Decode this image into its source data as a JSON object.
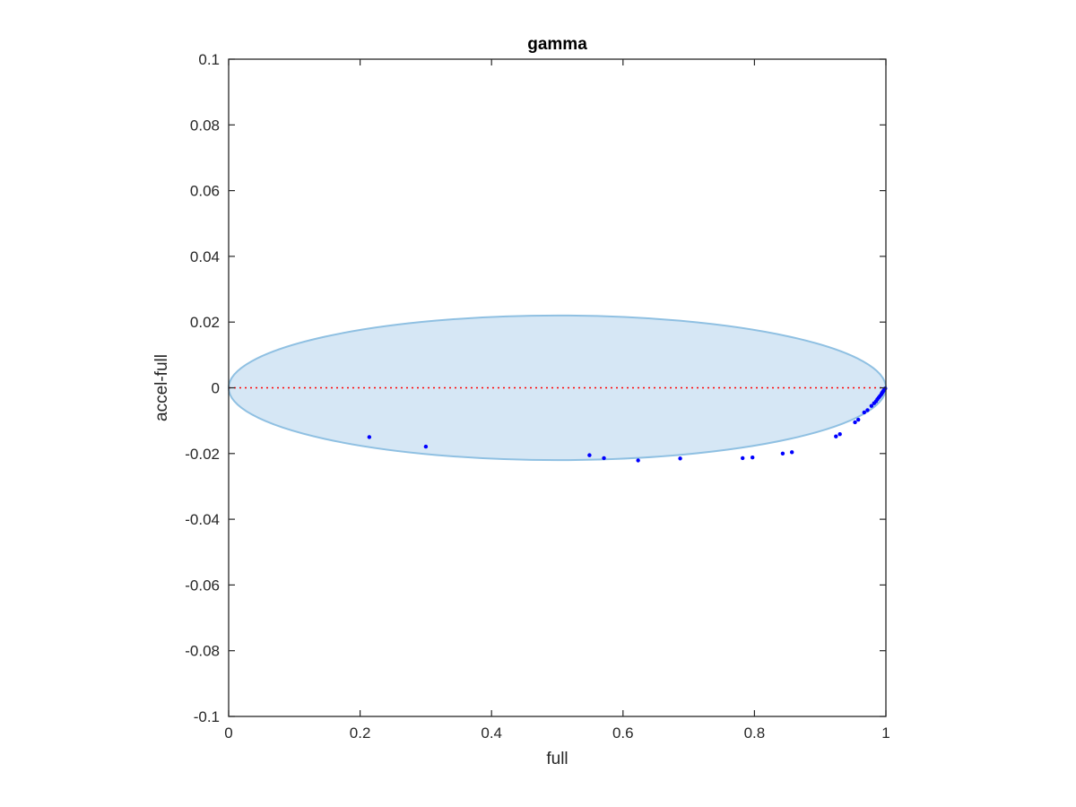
{
  "chart_data": {
    "type": "scatter",
    "title": "gamma",
    "xlabel": "full",
    "ylabel": "accel-full",
    "xlim": [
      0,
      1
    ],
    "ylim": [
      -0.1,
      0.1
    ],
    "xticks": [
      0,
      0.2,
      0.4,
      0.6,
      0.8,
      1
    ],
    "xtick_labels": [
      "0",
      "0.2",
      "0.4",
      "0.6",
      "0.8",
      "1"
    ],
    "yticks": [
      -0.1,
      -0.08,
      -0.06,
      -0.04,
      -0.02,
      0,
      0.02,
      0.04,
      0.06,
      0.08,
      0.1
    ],
    "ytick_labels": [
      "-0.1",
      "-0.08",
      "-0.06",
      "-0.04",
      "-0.02",
      "0",
      "0.02",
      "0.04",
      "0.06",
      "0.08",
      "0.1"
    ],
    "grid": false,
    "ellipse": {
      "cx": 0.5,
      "cy": 0,
      "rx": 0.5,
      "ry": 0.022,
      "fill": "#d6e7f5",
      "stroke": "#8fc0e2"
    },
    "reference_line": {
      "y": 0,
      "color": "#ff0000",
      "style": "dotted"
    },
    "point_color": "#0000ff",
    "points": [
      {
        "x": 0.214,
        "y": -0.015
      },
      {
        "x": 0.3,
        "y": -0.0179
      },
      {
        "x": 0.549,
        "y": -0.0205
      },
      {
        "x": 0.571,
        "y": -0.0214
      },
      {
        "x": 0.623,
        "y": -0.0221
      },
      {
        "x": 0.687,
        "y": -0.0215
      },
      {
        "x": 0.782,
        "y": -0.0214
      },
      {
        "x": 0.797,
        "y": -0.0212
      },
      {
        "x": 0.843,
        "y": -0.02
      },
      {
        "x": 0.857,
        "y": -0.0196
      },
      {
        "x": 0.924,
        "y": -0.0148
      },
      {
        "x": 0.93,
        "y": -0.0141
      },
      {
        "x": 0.953,
        "y": -0.0105
      },
      {
        "x": 0.958,
        "y": -0.0097
      },
      {
        "x": 0.967,
        "y": -0.0075
      },
      {
        "x": 0.972,
        "y": -0.0068
      },
      {
        "x": 0.978,
        "y": -0.0055
      },
      {
        "x": 0.982,
        "y": -0.0047
      },
      {
        "x": 0.985,
        "y": -0.0041
      },
      {
        "x": 0.987,
        "y": -0.0035
      },
      {
        "x": 0.989,
        "y": -0.003
      },
      {
        "x": 0.991,
        "y": -0.0025
      },
      {
        "x": 0.993,
        "y": -0.002
      },
      {
        "x": 0.994,
        "y": -0.0016
      },
      {
        "x": 0.995,
        "y": -0.0013
      },
      {
        "x": 0.996,
        "y": -0.001
      },
      {
        "x": 0.997,
        "y": -0.0007
      },
      {
        "x": 0.998,
        "y": -0.0004
      },
      {
        "x": 0.999,
        "y": -0.0002
      }
    ]
  }
}
